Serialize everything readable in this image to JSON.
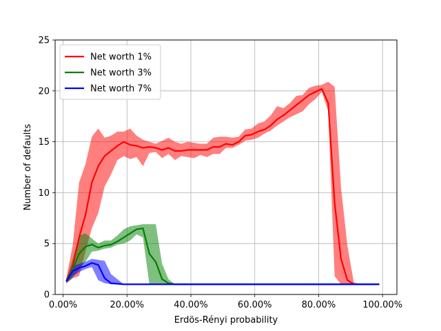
{
  "chart_data": {
    "type": "line",
    "title": "",
    "xlabel": "Erdös-Rényi probability",
    "ylabel": "Number of defaults",
    "xlim": [
      -0.025,
      1.045
    ],
    "ylim": [
      0,
      25
    ],
    "x_ticks": [
      0,
      0.2,
      0.4,
      0.6,
      0.8,
      1.0
    ],
    "x_tick_labels": [
      "0.00%",
      "20.00%",
      "40.00%",
      "60.00%",
      "80.00%",
      "100.00%"
    ],
    "y_ticks": [
      0,
      5,
      10,
      15,
      20,
      25
    ],
    "y_tick_labels": [
      "0",
      "5",
      "10",
      "15",
      "20",
      "25"
    ],
    "grid": true,
    "legend_position": "upper-left",
    "series": [
      {
        "name": "Net worth 1%",
        "color": "#ff0000",
        "band_color": "#ff0000",
        "x": [
          0.01,
          0.03,
          0.05,
          0.07,
          0.09,
          0.11,
          0.13,
          0.15,
          0.17,
          0.19,
          0.21,
          0.23,
          0.25,
          0.27,
          0.29,
          0.31,
          0.33,
          0.35,
          0.37,
          0.39,
          0.41,
          0.43,
          0.45,
          0.47,
          0.49,
          0.51,
          0.53,
          0.55,
          0.57,
          0.59,
          0.61,
          0.63,
          0.65,
          0.67,
          0.69,
          0.71,
          0.73,
          0.75,
          0.77,
          0.79,
          0.81,
          0.83,
          0.85,
          0.87,
          0.89,
          0.91,
          0.93,
          0.95,
          0.97,
          0.99
        ],
        "values": [
          1.3,
          2.8,
          5.6,
          7.8,
          11.0,
          12.6,
          13.6,
          14.1,
          14.6,
          15.0,
          14.7,
          14.6,
          14.4,
          14.5,
          14.4,
          14.2,
          14.4,
          14.1,
          14.1,
          14.2,
          14.2,
          14.2,
          14.2,
          14.5,
          14.5,
          14.8,
          14.7,
          15.0,
          15.6,
          15.7,
          16.0,
          16.2,
          16.6,
          17.2,
          17.6,
          18.1,
          18.6,
          19.1,
          19.6,
          19.9,
          20.2,
          18.8,
          9.0,
          3.5,
          1.4,
          1.0,
          1.0,
          1.0,
          1.0,
          1.0
        ],
        "upper": [
          1.6,
          4.8,
          11.0,
          12.8,
          15.5,
          16.3,
          15.4,
          15.6,
          16.0,
          16.0,
          16.3,
          15.6,
          15.2,
          15.0,
          14.8,
          15.1,
          15.4,
          15.0,
          14.8,
          15.0,
          14.9,
          14.8,
          14.8,
          15.4,
          15.5,
          15.5,
          15.4,
          15.5,
          16.2,
          16.3,
          16.8,
          17.0,
          17.6,
          18.5,
          18.3,
          18.8,
          19.5,
          19.6,
          20.3,
          20.5,
          20.6,
          20.9,
          20.4,
          10.5,
          4.8,
          1.2,
          1.0,
          1.0,
          1.0,
          1.0
        ],
        "lower": [
          1.1,
          1.6,
          1.8,
          4.2,
          6.5,
          8.0,
          10.6,
          11.8,
          13.2,
          13.6,
          13.3,
          13.5,
          12.6,
          13.9,
          14.0,
          13.4,
          13.8,
          13.2,
          13.6,
          13.5,
          13.4,
          13.7,
          13.5,
          13.8,
          13.8,
          14.4,
          14.4,
          14.7,
          15.1,
          15.2,
          15.4,
          15.8,
          16.1,
          16.6,
          17.0,
          17.4,
          17.7,
          18.0,
          18.7,
          19.2,
          19.9,
          18.0,
          1.8,
          1.0,
          1.0,
          1.0,
          1.0,
          1.0,
          1.0,
          1.0
        ]
      },
      {
        "name": "Net worth 3%",
        "color": "#008000",
        "band_color": "#008000",
        "x": [
          0.01,
          0.03,
          0.05,
          0.07,
          0.09,
          0.11,
          0.13,
          0.15,
          0.17,
          0.19,
          0.21,
          0.23,
          0.25,
          0.27,
          0.29,
          0.31,
          0.33,
          0.35,
          0.37,
          0.39,
          0.41,
          0.43,
          0.45,
          0.47,
          0.49,
          0.51,
          0.53,
          0.55,
          0.57,
          0.59,
          0.61,
          0.63,
          0.65,
          0.67,
          0.69,
          0.71,
          0.73,
          0.75,
          0.77,
          0.79,
          0.81,
          0.83,
          0.85,
          0.87,
          0.89,
          0.91,
          0.93,
          0.95,
          0.97,
          0.99
        ],
        "values": [
          1.3,
          2.5,
          4.0,
          4.7,
          4.9,
          4.6,
          4.8,
          4.9,
          5.2,
          5.6,
          6.0,
          6.4,
          6.5,
          4.0,
          3.2,
          1.5,
          1.1,
          1.0,
          1.0,
          1.0,
          1.0,
          1.0,
          1.0,
          1.0,
          1.0,
          1.0,
          1.0,
          1.0,
          1.0,
          1.0,
          1.0,
          1.0,
          1.0,
          1.0,
          1.0,
          1.0,
          1.0,
          1.0,
          1.0,
          1.0,
          1.0,
          1.0,
          1.0,
          1.0,
          1.0,
          1.0,
          1.0,
          1.0,
          1.0,
          1.0
        ],
        "upper": [
          1.5,
          3.5,
          5.8,
          6.0,
          5.5,
          5.0,
          5.3,
          5.3,
          5.8,
          6.4,
          6.7,
          6.8,
          6.9,
          6.9,
          6.9,
          3.0,
          1.5,
          1.0,
          1.0,
          1.0,
          1.0,
          1.0,
          1.0,
          1.0,
          1.0,
          1.0,
          1.0,
          1.0,
          1.0,
          1.0,
          1.0,
          1.0,
          1.0,
          1.0,
          1.0,
          1.0,
          1.0,
          1.0,
          1.0,
          1.0,
          1.0,
          1.0,
          1.0,
          1.0,
          1.0,
          1.0,
          1.0,
          1.0,
          1.0,
          1.0
        ],
        "lower": [
          1.1,
          1.6,
          2.5,
          3.2,
          4.2,
          4.3,
          4.5,
          4.6,
          4.9,
          5.0,
          5.3,
          5.9,
          5.6,
          1.0,
          1.0,
          1.0,
          1.0,
          1.0,
          1.0,
          1.0,
          1.0,
          1.0,
          1.0,
          1.0,
          1.0,
          1.0,
          1.0,
          1.0,
          1.0,
          1.0,
          1.0,
          1.0,
          1.0,
          1.0,
          1.0,
          1.0,
          1.0,
          1.0,
          1.0,
          1.0,
          1.0,
          1.0,
          1.0,
          1.0,
          1.0,
          1.0,
          1.0,
          1.0,
          1.0,
          1.0
        ]
      },
      {
        "name": "Net worth 7%",
        "color": "#0000ff",
        "band_color": "#0000ff",
        "x": [
          0.01,
          0.03,
          0.05,
          0.07,
          0.09,
          0.11,
          0.13,
          0.15,
          0.17,
          0.19,
          0.21,
          0.23,
          0.25,
          0.27,
          0.29,
          0.31,
          0.33,
          0.35,
          0.37,
          0.39,
          0.41,
          0.43,
          0.45,
          0.47,
          0.49,
          0.51,
          0.53,
          0.55,
          0.57,
          0.59,
          0.61,
          0.63,
          0.65,
          0.67,
          0.69,
          0.71,
          0.73,
          0.75,
          0.77,
          0.79,
          0.81,
          0.83,
          0.85,
          0.87,
          0.89,
          0.91,
          0.93,
          0.95,
          0.97,
          0.99
        ],
        "values": [
          1.3,
          2.3,
          2.6,
          2.8,
          3.1,
          2.9,
          1.6,
          1.1,
          1.05,
          1.0,
          1.0,
          1.0,
          1.0,
          1.0,
          1.0,
          1.0,
          1.0,
          1.0,
          1.0,
          1.0,
          1.0,
          1.0,
          1.0,
          1.0,
          1.0,
          1.0,
          1.0,
          1.0,
          1.0,
          1.0,
          1.0,
          1.0,
          1.0,
          1.0,
          1.0,
          1.0,
          1.0,
          1.0,
          1.0,
          1.0,
          1.0,
          1.0,
          1.0,
          1.0,
          1.0,
          1.0,
          1.0,
          1.0,
          1.0,
          1.0
        ],
        "upper": [
          1.5,
          2.8,
          3.0,
          3.2,
          3.5,
          3.4,
          3.3,
          2.0,
          1.5,
          1.0,
          1.0,
          1.0,
          1.0,
          1.0,
          1.0,
          1.0,
          1.0,
          1.0,
          1.0,
          1.0,
          1.0,
          1.0,
          1.0,
          1.0,
          1.0,
          1.0,
          1.0,
          1.0,
          1.0,
          1.0,
          1.0,
          1.0,
          1.0,
          1.0,
          1.0,
          1.0,
          1.0,
          1.0,
          1.0,
          1.0,
          1.0,
          1.0,
          1.0,
          1.0,
          1.0,
          1.0,
          1.0,
          1.0,
          1.0,
          1.0
        ],
        "lower": [
          1.1,
          1.8,
          2.2,
          2.5,
          2.7,
          1.4,
          1.1,
          1.0,
          1.0,
          1.0,
          1.0,
          1.0,
          1.0,
          1.0,
          1.0,
          1.0,
          1.0,
          1.0,
          1.0,
          1.0,
          1.0,
          1.0,
          1.0,
          1.0,
          1.0,
          1.0,
          1.0,
          1.0,
          1.0,
          1.0,
          1.0,
          1.0,
          1.0,
          1.0,
          1.0,
          1.0,
          1.0,
          1.0,
          1.0,
          1.0,
          1.0,
          1.0,
          1.0,
          1.0,
          1.0,
          1.0,
          1.0,
          1.0,
          1.0,
          1.0
        ]
      }
    ]
  }
}
